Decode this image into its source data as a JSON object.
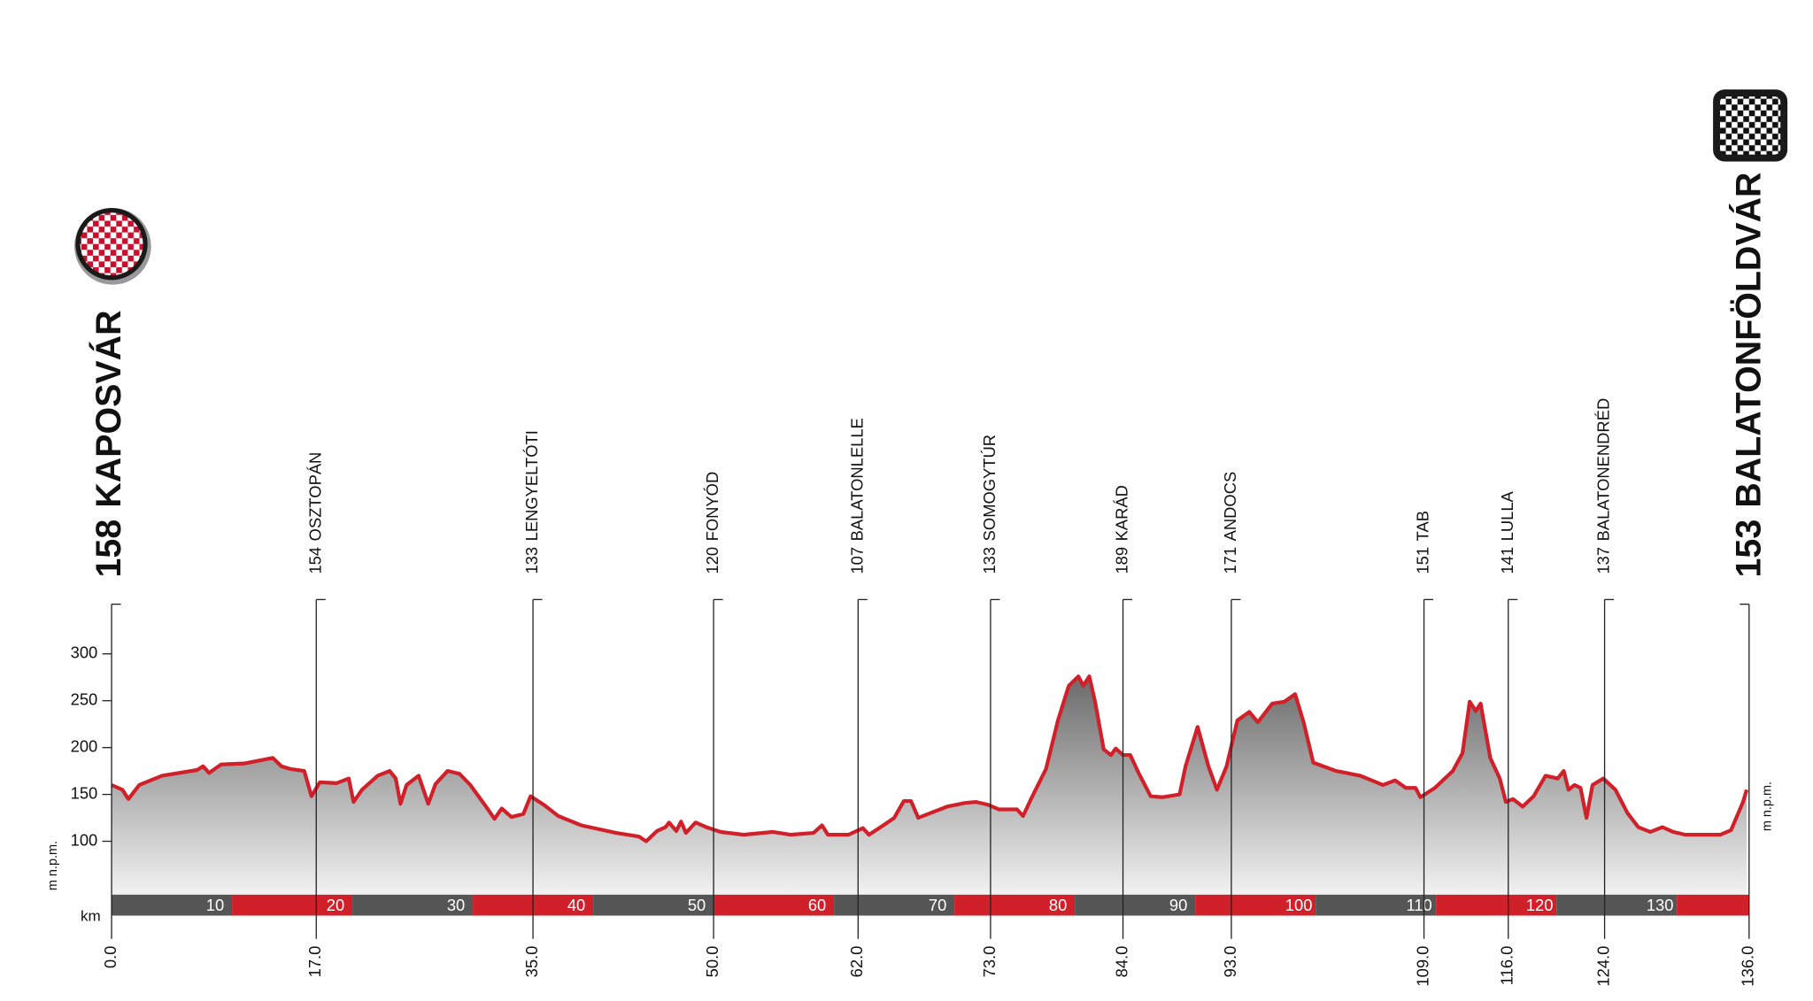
{
  "chart_data": {
    "type": "area",
    "y_axis_label": "m n.p.m.",
    "km_label": "km",
    "color": "#d0202a",
    "xlim": [
      0,
      136
    ],
    "ylim": [
      43,
      353
    ],
    "yticks": [
      100,
      150,
      200,
      250,
      300
    ],
    "km_bar_ticks": [
      10,
      20,
      30,
      40,
      50,
      60,
      70,
      80,
      90,
      100,
      110,
      120,
      130
    ],
    "xticks": [
      {
        "value": 0,
        "label": "0.0"
      },
      {
        "value": 17,
        "label": "17.0"
      },
      {
        "value": 35,
        "label": "35.0"
      },
      {
        "value": 50,
        "label": "50.0"
      },
      {
        "value": 62,
        "label": "62.0"
      },
      {
        "value": 73,
        "label": "73.0"
      },
      {
        "value": 84,
        "label": "84.0"
      },
      {
        "value": 93,
        "label": "93.0"
      },
      {
        "value": 109,
        "label": "109.0"
      },
      {
        "value": 116,
        "label": "116.0"
      },
      {
        "value": 124,
        "label": "124.0"
      },
      {
        "value": 136,
        "label": "136.0"
      }
    ],
    "places": [
      {
        "elevation": 158,
        "name": "KAPOSVÁR"
      },
      {
        "elevation": 154,
        "name": "OSZTOPÁN"
      },
      {
        "elevation": 133,
        "name": "LENGYELTÓTI"
      },
      {
        "elevation": 120,
        "name": "FONYÓD"
      },
      {
        "elevation": 107,
        "name": "BALATONLELLE"
      },
      {
        "elevation": 133,
        "name": "SOMOGYTÚR"
      },
      {
        "elevation": 189,
        "name": "KARÁD"
      },
      {
        "elevation": 171,
        "name": "ANDOCS"
      },
      {
        "elevation": 151,
        "name": "TAB"
      },
      {
        "elevation": 141,
        "name": "LULLA"
      },
      {
        "elevation": 137,
        "name": "BALATONENDRÉD"
      },
      {
        "elevation": 153,
        "name": "BALATONFÖLDVÁR"
      }
    ],
    "x": [
      0,
      0.9,
      1.4,
      2.3,
      4.2,
      7.1,
      7.6,
      8.1,
      9.1,
      11,
      13.4,
      14.1,
      14.9,
      16,
      16.6,
      17.3,
      18.7,
      19.7,
      20.1,
      20.8,
      22.1,
      23.1,
      23.6,
      24,
      24.5,
      25.5,
      26.3,
      26.9,
      27.9,
      28.9,
      29.8,
      31.1,
      31.8,
      32.4,
      33.2,
      34.2,
      34.8,
      35.9,
      37.1,
      39,
      41.9,
      43.8,
      44.4,
      45.3,
      46,
      46.3,
      46.9,
      47.3,
      47.7,
      48.5,
      49.4,
      50.6,
      52.5,
      54.9,
      56.4,
      58.3,
      59,
      59.5,
      61.2,
      62.4,
      62.9,
      64.1,
      65,
      65.8,
      66.4,
      67,
      68,
      69.4,
      70.9,
      71.8,
      72.8,
      73.7,
      75.2,
      75.7,
      76.4,
      77.6,
      78.6,
      79.5,
      80.3,
      80.7,
      81.2,
      81.7,
      82.4,
      83,
      83.4,
      84,
      84.6,
      85.3,
      86.3,
      87.3,
      88.7,
      89.2,
      90.2,
      91.1,
      91.8,
      92.6,
      93.5,
      94.5,
      95.2,
      96.4,
      97.4,
      98.3,
      99,
      99.8,
      101.7,
      103.7,
      105.6,
      106.6,
      107.5,
      108.3,
      108.7,
      109.9,
      111.4,
      112.2,
      112.8,
      113.3,
      113.7,
      114.5,
      115.3,
      115.8,
      116.4,
      117.2,
      118.1,
      119.1,
      120.1,
      120.6,
      121,
      121.5,
      122,
      122.5,
      123,
      123.9,
      124.9,
      125.9,
      126.8,
      127.8,
      128.8,
      129.7,
      130.7,
      133.6,
      134.5,
      135.5,
      135.8
    ],
    "values": [
      160,
      155,
      145,
      160,
      170,
      176,
      180,
      173,
      182,
      183,
      189,
      180,
      177,
      175,
      148,
      163,
      162,
      167,
      142,
      155,
      170,
      175,
      167,
      140,
      160,
      170,
      140,
      161,
      175,
      172,
      160,
      137,
      124,
      135,
      126,
      129,
      148,
      139,
      127,
      117,
      109,
      105,
      100,
      111,
      115,
      120,
      111,
      121,
      109,
      120,
      115,
      110,
      107,
      110,
      107,
      109,
      117,
      107,
      107,
      114,
      107,
      117,
      125,
      143,
      143,
      125,
      130,
      137,
      141,
      142,
      139,
      134,
      134,
      127,
      146,
      177,
      229,
      266,
      276,
      266,
      276,
      248,
      198,
      192,
      199,
      192,
      192,
      173,
      148,
      147,
      150,
      180,
      222,
      180,
      155,
      180,
      229,
      238,
      227,
      247,
      249,
      257,
      227,
      184,
      175,
      170,
      160,
      165,
      157,
      157,
      147,
      157,
      175,
      194,
      249,
      239,
      247,
      189,
      167,
      142,
      145,
      137,
      148,
      170,
      167,
      175,
      155,
      160,
      157,
      125,
      160,
      167,
      155,
      130,
      115,
      110,
      115,
      110,
      107,
      107,
      112,
      142,
      155
    ]
  }
}
